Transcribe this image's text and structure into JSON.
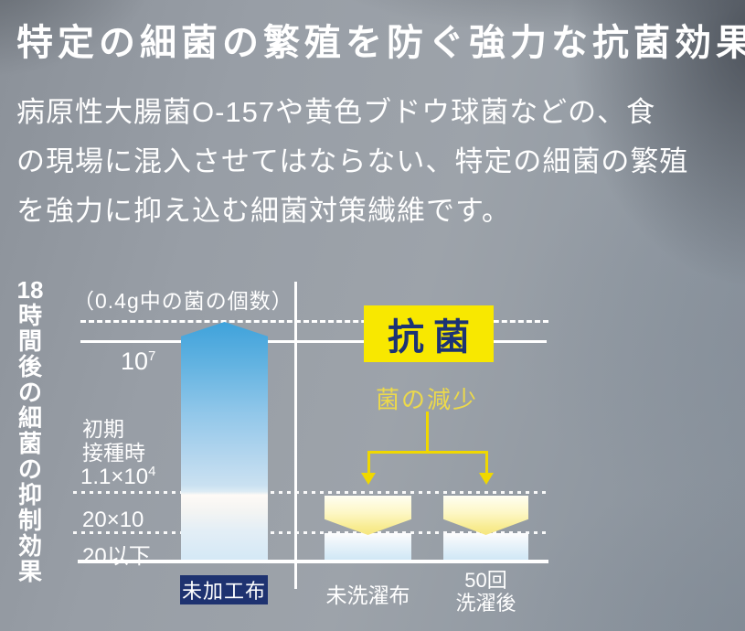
{
  "title": "特定の細菌の繁殖を防ぐ強力な抗菌効果",
  "intro": {
    "lines": [
      "病原性大腸菌O-157や黄色ブドウ球菌などの、食",
      "の現場に混入させてはならない、特定の細菌の繁殖",
      "を強力に抑え込む細菌対策繊維です。"
    ]
  },
  "chart": {
    "axis_title_num": "18",
    "axis_title_rest": "時間後の細菌の抑制効果",
    "unit_label": "（0.4g中の菌の個数）",
    "tick_10e7_base": "10",
    "tick_10e7_sup": "7",
    "initial_label_line1": "初期",
    "initial_label_line2": "接種時",
    "initial_value_base": "1.1×10",
    "initial_value_sup": "4",
    "tick_20x10": "20×10",
    "tick_20_below": "20以下",
    "badge": "抗菌",
    "reduction_label": "菌の減少",
    "cat_untreated": "未加工布",
    "cat_unwashed": "未洗濯布",
    "cat_washed_line1": "50回",
    "cat_washed_line2": "洗濯後"
  },
  "colors": {
    "accent_yellow": "#f8e800",
    "arrow_yellow": "#f0d800",
    "navy": "#1e3270",
    "bar_blue_top": "#3fa2db",
    "bar_blue_bottom": "#d3e8f6",
    "text_white": "#ffffff"
  },
  "chart_data": {
    "type": "bar",
    "title": "18時間後の細菌の抑制効果",
    "unit": "（0.4g中の菌の個数）",
    "y_scale": "log",
    "y_reference_lines": [
      "10^7",
      "初期接種時 1.1×10^4",
      "20×10",
      "20以下"
    ],
    "categories": [
      "未加工布",
      "未洗濯布",
      "50回洗濯後"
    ],
    "series": [
      {
        "name": "18時間後の菌の個数（0.4g中）",
        "values": [
          ">10^7",
          "≤20",
          "≤20"
        ]
      }
    ],
    "initial_inoculation": "1.1×10^4",
    "annotations": [
      {
        "text": "抗菌",
        "style": "yellow-badge",
        "position": "right-panel-top"
      },
      {
        "text": "菌の減少",
        "style": "yellow-arrows",
        "targets": [
          "未洗濯布",
          "50回洗濯後"
        ]
      }
    ],
    "legend": "none",
    "grid": "off"
  }
}
